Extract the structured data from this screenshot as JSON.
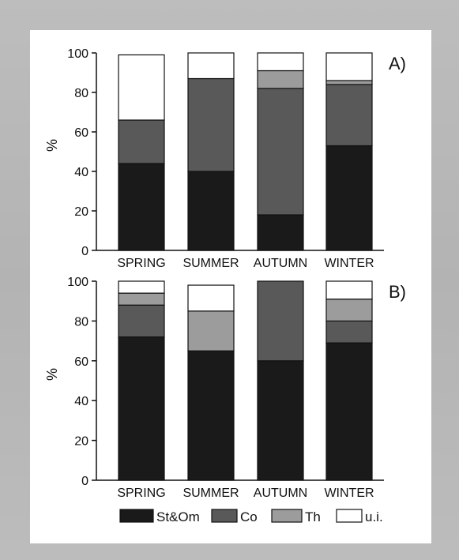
{
  "chart_data": [
    {
      "type": "bar",
      "stacked": true,
      "panel_label": "A)",
      "categories": [
        "SPRING",
        "SUMMER",
        "AUTUMN",
        "WINTER"
      ],
      "ylabel": "%",
      "ylim": [
        0,
        100
      ],
      "yticks": [
        0,
        20,
        40,
        60,
        80,
        100
      ],
      "series": [
        {
          "name": "St&Om",
          "values": [
            44,
            40,
            18,
            53
          ]
        },
        {
          "name": "Co",
          "values": [
            22,
            47,
            64,
            31
          ]
        },
        {
          "name": "Th",
          "values": [
            0,
            0,
            9,
            2
          ]
        },
        {
          "name": "u.i.",
          "values": [
            33,
            13,
            9,
            14
          ]
        }
      ]
    },
    {
      "type": "bar",
      "stacked": true,
      "panel_label": "B)",
      "categories": [
        "SPRING",
        "SUMMER",
        "AUTUMN",
        "WINTER"
      ],
      "ylabel": "%",
      "ylim": [
        0,
        100
      ],
      "yticks": [
        0,
        20,
        40,
        60,
        80,
        100
      ],
      "series": [
        {
          "name": "St&Om",
          "values": [
            72,
            65,
            60,
            69
          ]
        },
        {
          "name": "Co",
          "values": [
            16,
            0,
            40,
            11
          ]
        },
        {
          "name": "Th",
          "values": [
            6,
            20,
            0,
            11
          ]
        },
        {
          "name": "u.i.",
          "values": [
            6,
            13,
            0,
            9
          ]
        }
      ]
    }
  ],
  "legend": {
    "placement": "bottom",
    "items": [
      {
        "label": "St&Om",
        "color": "#1a1a1a"
      },
      {
        "label": "Co",
        "color": "#595959"
      },
      {
        "label": "Th",
        "color": "#9c9c9c"
      },
      {
        "label": "u.i.",
        "color": "#ffffff"
      }
    ]
  }
}
